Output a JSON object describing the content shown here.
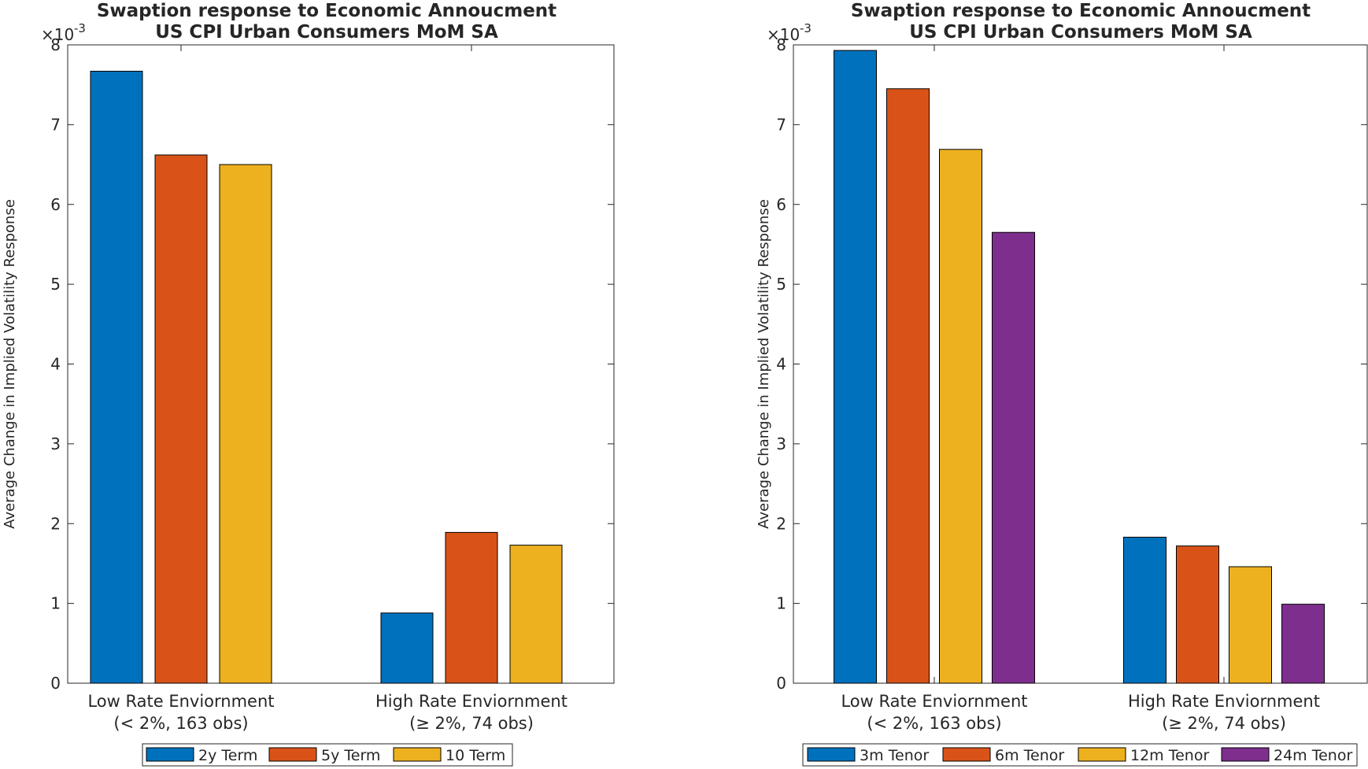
{
  "chart_data": [
    {
      "type": "bar",
      "title_line1": "Swaption response to Economic Annoucment",
      "title_line2": "US CPI Urban Consumers MoM SA",
      "ylabel": "Average Change in Implied Volatility Response",
      "exponent_label": "×10",
      "exponent_power": "-3",
      "ylim": [
        0,
        8
      ],
      "yticks": [
        "0",
        "1",
        "2",
        "3",
        "4",
        "5",
        "6",
        "7",
        "8"
      ],
      "categories": [
        {
          "line1": "Low Rate Enviornment",
          "line2": "(< 2%, 163 obs)"
        },
        {
          "line1": "High Rate Enviornment",
          "line2": "(≥ 2%, 74 obs)"
        }
      ],
      "series": [
        {
          "name": "2y Term",
          "color": "#0072BD",
          "values": [
            7.67,
            0.88
          ]
        },
        {
          "name": "5y Term",
          "color": "#D95319",
          "values": [
            6.62,
            1.89
          ]
        },
        {
          "name": "10 Term",
          "color": "#EDB120",
          "values": [
            6.5,
            1.73
          ]
        }
      ],
      "legend_position": "bottom",
      "grid": false
    },
    {
      "type": "bar",
      "title_line1": "Swaption response to Economic Annoucment",
      "title_line2": "US CPI Urban Consumers MoM SA",
      "ylabel": "Average Change in Implied Volatility Response",
      "exponent_label": "×10",
      "exponent_power": "-3",
      "ylim": [
        0,
        8
      ],
      "yticks": [
        "0",
        "1",
        "2",
        "3",
        "4",
        "5",
        "6",
        "7",
        "8"
      ],
      "categories": [
        {
          "line1": "Low Rate Enviornment",
          "line2": "(< 2%, 163 obs)"
        },
        {
          "line1": "High Rate Enviornment",
          "line2": "(≥ 2%, 74 obs)"
        }
      ],
      "series": [
        {
          "name": "3m Tenor",
          "color": "#0072BD",
          "values": [
            7.93,
            1.83
          ]
        },
        {
          "name": "6m Tenor",
          "color": "#D95319",
          "values": [
            7.45,
            1.72
          ]
        },
        {
          "name": "12m Tenor",
          "color": "#EDB120",
          "values": [
            6.69,
            1.46
          ]
        },
        {
          "name": "24m Tenor",
          "color": "#7E2F8E",
          "values": [
            5.65,
            0.99
          ]
        }
      ],
      "legend_position": "bottom",
      "grid": false
    }
  ]
}
